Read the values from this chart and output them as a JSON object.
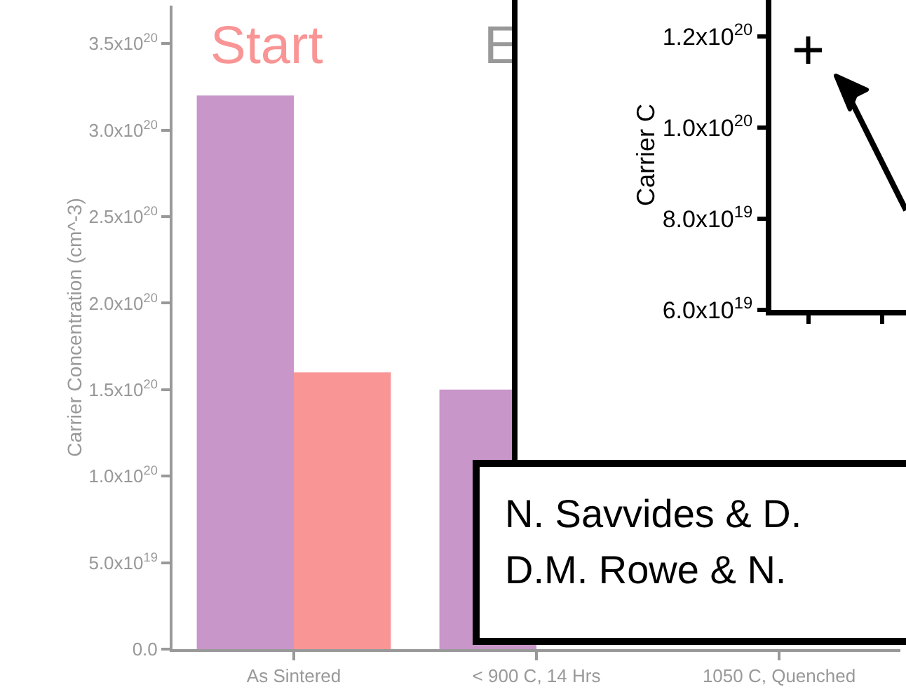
{
  "chart_data": [
    {
      "type": "bar",
      "ylabel": "Carrier Concentration (cm^-3)",
      "categories": [
        "As Sintered",
        "< 900 C, 14 Hrs",
        "1050 C, Quenched"
      ],
      "series": [
        {
          "color": "#c896c8",
          "values": [
            3.2e+20,
            1.5e+20,
            null
          ]
        },
        {
          "color": "#f99595",
          "values": [
            1.6e+20,
            null,
            null
          ]
        }
      ],
      "ylim": [
        0,
        3.72e+20
      ],
      "yticks": [
        {
          "value": 0,
          "label": "0.0"
        },
        {
          "value": 5e+19,
          "label": "5.0x10$^{19}$"
        },
        {
          "value": 1e+20,
          "label": "1.0x10$^{20}$"
        },
        {
          "value": 1.5e+20,
          "label": "1.5x10$^{20}$"
        },
        {
          "value": 2e+20,
          "label": "2.0x10$^{20}$"
        },
        {
          "value": 2.5e+20,
          "label": "2.5x10$^{20}$"
        },
        {
          "value": 3e+20,
          "label": "3.0x10$^{20}$"
        },
        {
          "value": 3.5e+20,
          "label": "3.5x10$^{20}$"
        }
      ],
      "grid": false,
      "annotations": [
        "Start",
        "E",
        "N. Savvides & D.\nD.M. Rowe & N."
      ]
    },
    {
      "type": "scatter",
      "ylabel": "Carrier C",
      "categories": [
        null,
        null
      ],
      "values": [
        1.17e+20,
        null
      ],
      "ylim": [
        6e+19,
        1.28e+20
      ],
      "yticks": [
        {
          "value": 6e+19,
          "label": "6.0x10$^{19}$"
        },
        {
          "value": 8e+19,
          "label": "8.0x10$^{19}$"
        },
        {
          "value": 1e+20,
          "label": "1.0x10$^{20}$"
        },
        {
          "value": 1.2e+20,
          "label": "1.2x10$^{20}$"
        }
      ],
      "marker": "cross",
      "tick_labels": "y",
      "grid": false
    }
  ]
}
